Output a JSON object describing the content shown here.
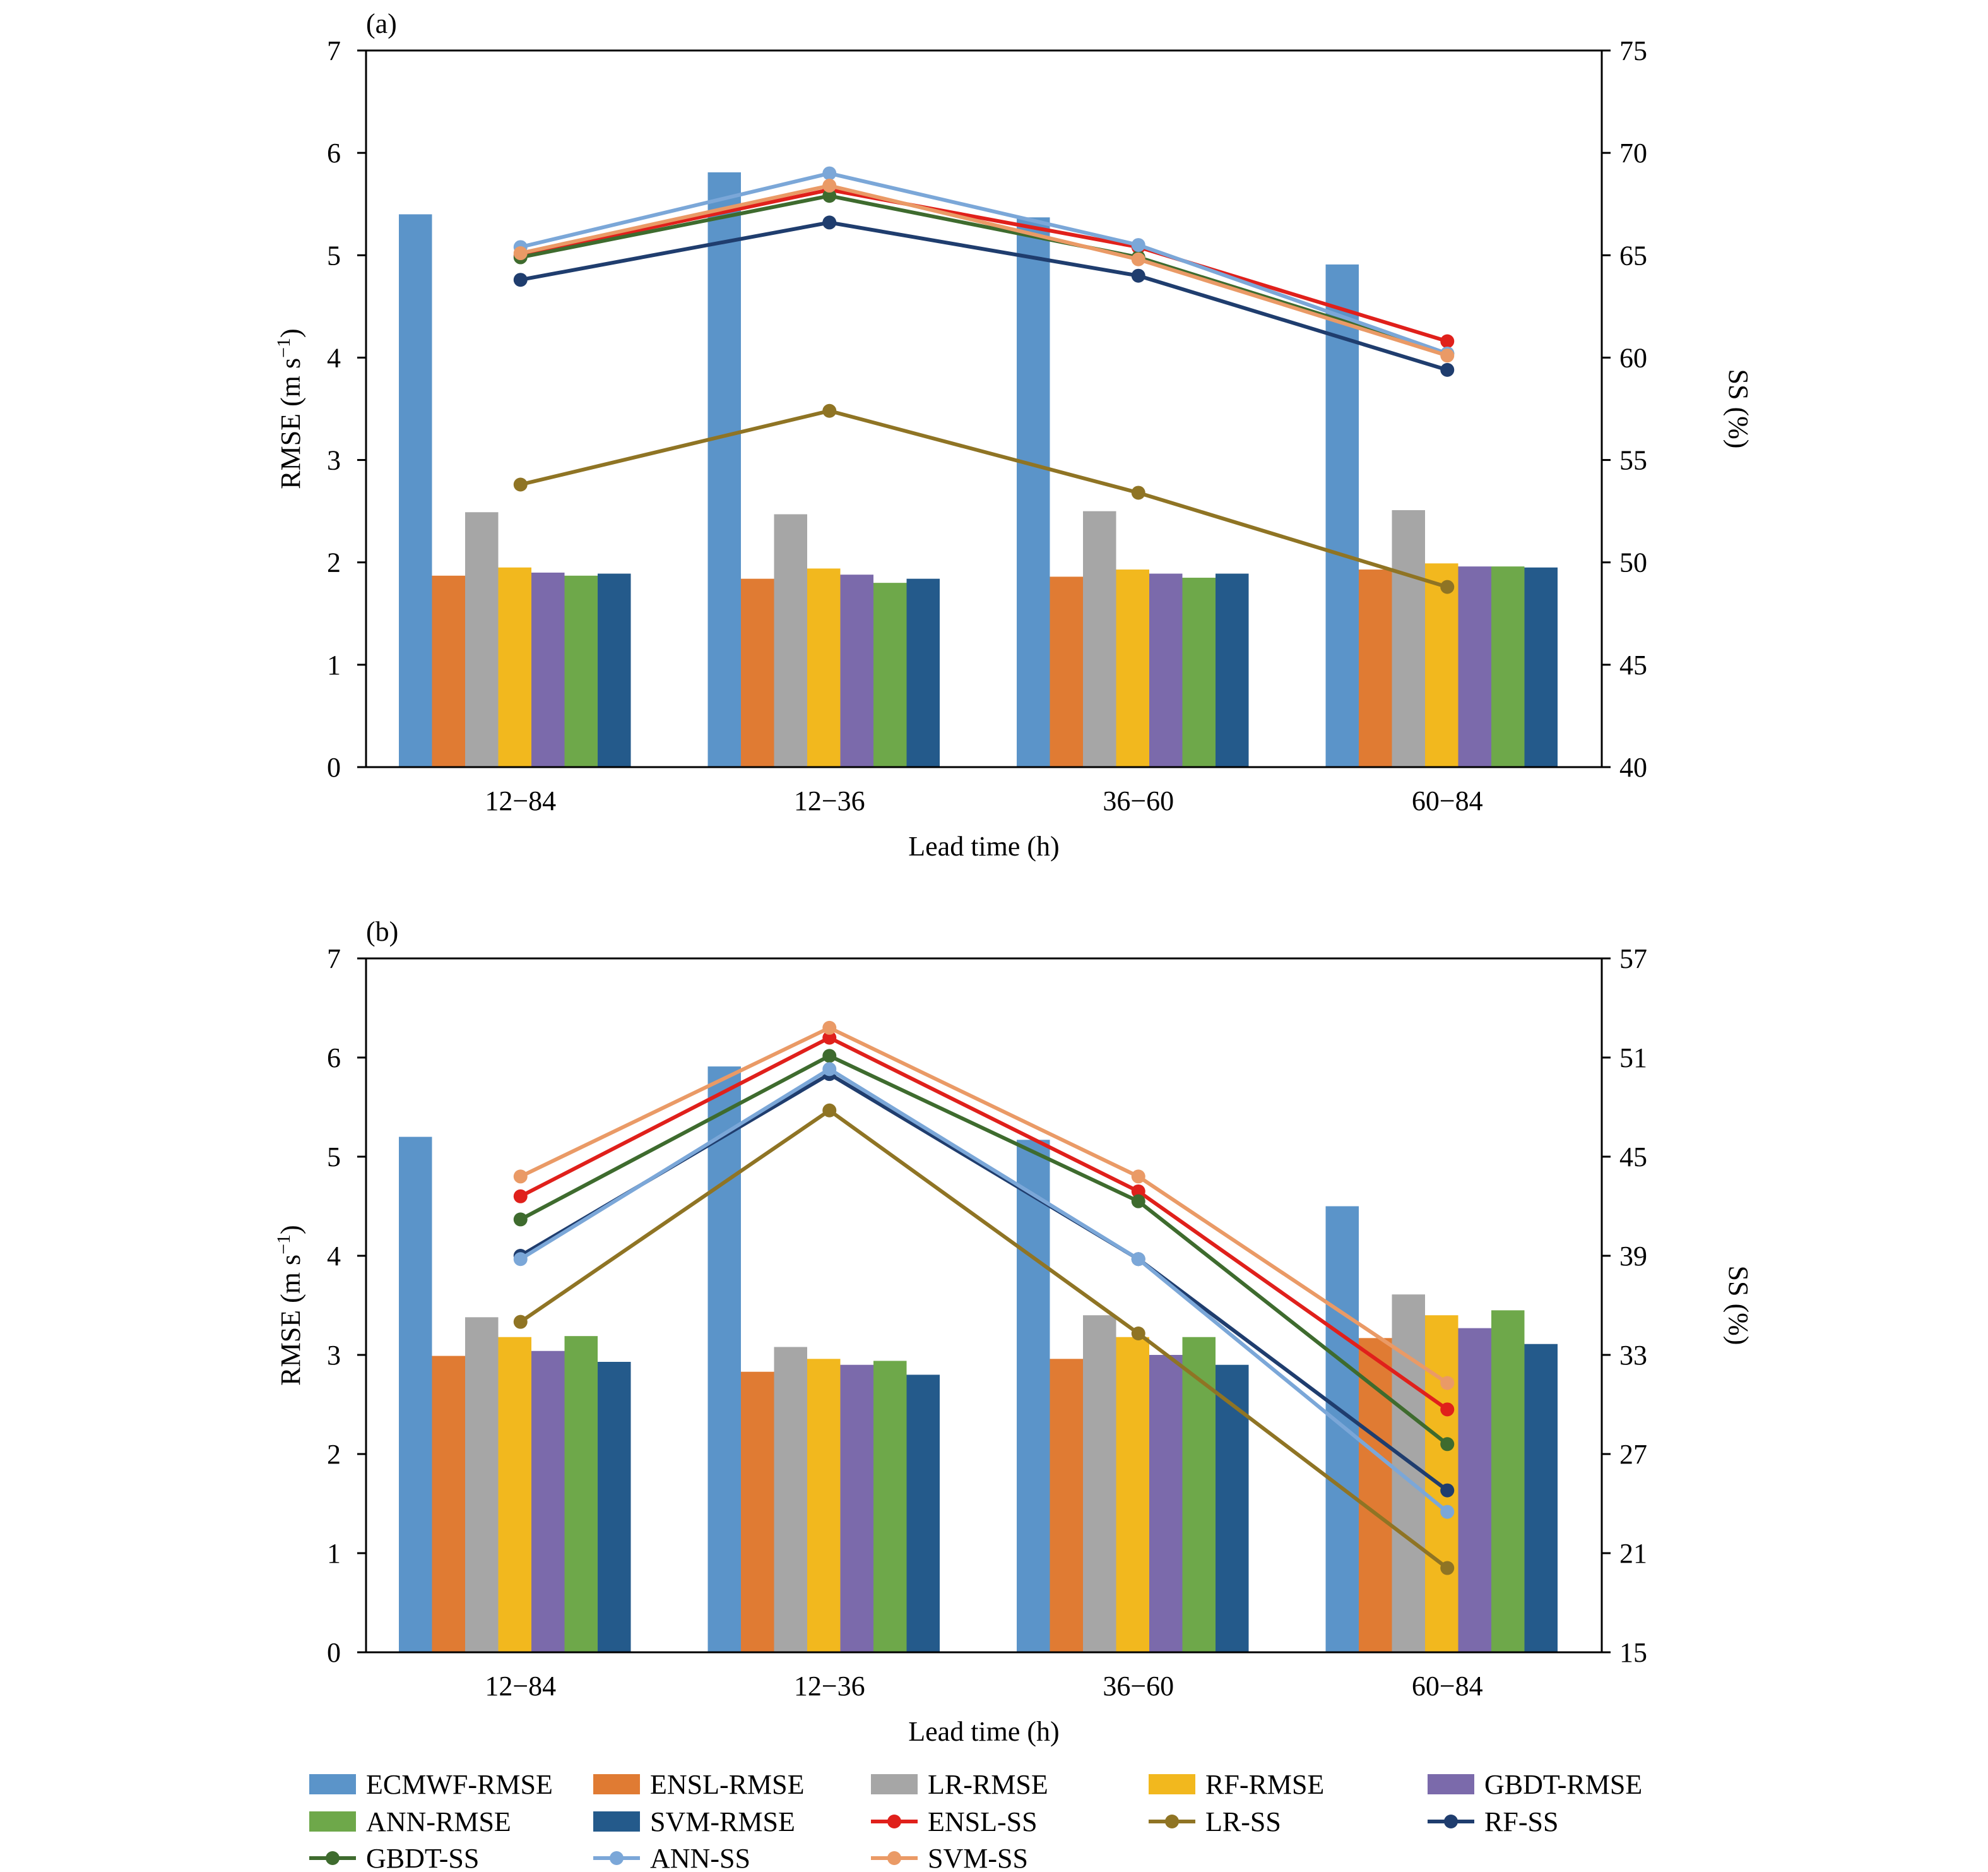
{
  "legend": {
    "items": [
      {
        "label": "ECMWF-RMSE",
        "kind": "bar",
        "color": "#5b94c9"
      },
      {
        "label": "ENSL-RMSE",
        "kind": "bar",
        "color": "#e07b33"
      },
      {
        "label": "LR-RMSE",
        "kind": "bar",
        "color": "#a6a6a6"
      },
      {
        "label": "RF-RMSE",
        "kind": "bar",
        "color": "#f2b81e"
      },
      {
        "label": "GBDT-RMSE",
        "kind": "bar",
        "color": "#7b6aab"
      },
      {
        "label": "ANN-RMSE",
        "kind": "bar",
        "color": "#6ea84a"
      },
      {
        "label": "SVM-RMSE",
        "kind": "bar",
        "color": "#245a8b"
      },
      {
        "label": "ENSL-SS",
        "kind": "line",
        "color": "#e0201b"
      },
      {
        "label": "LR-SS",
        "kind": "line",
        "color": "#8f7424"
      },
      {
        "label": "RF-SS",
        "kind": "line",
        "color": "#1f3d6e"
      },
      {
        "label": "GBDT-SS",
        "kind": "line",
        "color": "#3e6b2e"
      },
      {
        "label": "ANN-SS",
        "kind": "line",
        "color": "#7ba7d8"
      },
      {
        "label": "SVM-SS",
        "kind": "line",
        "color": "#ea9a66"
      }
    ]
  },
  "chart_data": [
    {
      "panel_label": "(a)",
      "type": "bar",
      "xlabel": "Lead time (h)",
      "ylabel": "RMSE (m s",
      "ylabel_sup": "−1",
      "ylabel_close": ")",
      "y2label": "SS (%)",
      "ylim": [
        0,
        7
      ],
      "y2lim": [
        40,
        75
      ],
      "yticks": [
        "0",
        "1",
        "2",
        "3",
        "4",
        "5",
        "6",
        "7"
      ],
      "y2ticks": [
        "40",
        "45",
        "50",
        "55",
        "60",
        "65",
        "70",
        "75"
      ],
      "categories": [
        "12−84",
        "12−36",
        "36−60",
        "60−84"
      ],
      "bar_series": [
        {
          "name": "ECMWF-RMSE",
          "color": "#5b94c9",
          "values": [
            5.4,
            5.81,
            5.37,
            4.91
          ]
        },
        {
          "name": "ENSL-RMSE",
          "color": "#e07b33",
          "values": [
            1.87,
            1.84,
            1.86,
            1.93
          ]
        },
        {
          "name": "LR-RMSE",
          "color": "#a6a6a6",
          "values": [
            2.49,
            2.47,
            2.5,
            2.51
          ]
        },
        {
          "name": "RF-RMSE",
          "color": "#f2b81e",
          "values": [
            1.95,
            1.94,
            1.93,
            1.99
          ]
        },
        {
          "name": "GBDT-RMSE",
          "color": "#7b6aab",
          "values": [
            1.9,
            1.88,
            1.89,
            1.96
          ]
        },
        {
          "name": "ANN-RMSE",
          "color": "#6ea84a",
          "values": [
            1.87,
            1.8,
            1.85,
            1.96
          ]
        },
        {
          "name": "SVM-RMSE",
          "color": "#245a8b",
          "values": [
            1.89,
            1.84,
            1.89,
            1.95
          ]
        }
      ],
      "line_series": [
        {
          "name": "ENSL-SS",
          "color": "#e0201b",
          "values": [
            65.0,
            68.2,
            65.4,
            60.8
          ]
        },
        {
          "name": "LR-SS",
          "color": "#8f7424",
          "values": [
            53.8,
            57.4,
            53.4,
            48.8
          ]
        },
        {
          "name": "RF-SS",
          "color": "#1f3d6e",
          "values": [
            63.8,
            66.6,
            64.0,
            59.4
          ]
        },
        {
          "name": "GBDT-SS",
          "color": "#3e6b2e",
          "values": [
            64.9,
            67.9,
            64.9,
            60.2
          ]
        },
        {
          "name": "ANN-SS",
          "color": "#7ba7d8",
          "values": [
            65.4,
            69.0,
            65.5,
            60.2
          ]
        },
        {
          "name": "SVM-SS",
          "color": "#ea9a66",
          "values": [
            65.1,
            68.4,
            64.8,
            60.1
          ]
        }
      ]
    },
    {
      "panel_label": "(b)",
      "type": "bar",
      "xlabel": "Lead time (h)",
      "ylabel": "RMSE (m s",
      "ylabel_sup": "−1",
      "ylabel_close": ")",
      "y2label": "SS (%)",
      "ylim": [
        0,
        7
      ],
      "y2lim": [
        15,
        57
      ],
      "yticks": [
        "0",
        "1",
        "2",
        "3",
        "4",
        "5",
        "6",
        "7"
      ],
      "y2ticks": [
        "15",
        "21",
        "27",
        "33",
        "39",
        "45",
        "51",
        "57"
      ],
      "categories": [
        "12−84",
        "12−36",
        "36−60",
        "60−84"
      ],
      "bar_series": [
        {
          "name": "ECMWF-RMSE",
          "color": "#5b94c9",
          "values": [
            5.2,
            5.91,
            5.17,
            4.5
          ]
        },
        {
          "name": "ENSL-RMSE",
          "color": "#e07b33",
          "values": [
            2.99,
            2.83,
            2.96,
            3.17
          ]
        },
        {
          "name": "LR-RMSE",
          "color": "#a6a6a6",
          "values": [
            3.38,
            3.08,
            3.4,
            3.61
          ]
        },
        {
          "name": "RF-RMSE",
          "color": "#f2b81e",
          "values": [
            3.18,
            2.96,
            3.18,
            3.4
          ]
        },
        {
          "name": "GBDT-RMSE",
          "color": "#7b6aab",
          "values": [
            3.04,
            2.9,
            3.0,
            3.27
          ]
        },
        {
          "name": "ANN-RMSE",
          "color": "#6ea84a",
          "values": [
            3.19,
            2.94,
            3.18,
            3.45
          ]
        },
        {
          "name": "SVM-RMSE",
          "color": "#245a8b",
          "values": [
            2.93,
            2.8,
            2.9,
            3.11
          ]
        }
      ],
      "line_series": [
        {
          "name": "ENSL-SS",
          "color": "#e0201b",
          "values": [
            42.6,
            52.2,
            42.9,
            29.7
          ]
        },
        {
          "name": "LR-SS",
          "color": "#8f7424",
          "values": [
            35.0,
            47.8,
            34.3,
            20.1
          ]
        },
        {
          "name": "RF-SS",
          "color": "#1f3d6e",
          "values": [
            39.0,
            50.0,
            38.8,
            24.8
          ]
        },
        {
          "name": "GBDT-SS",
          "color": "#3e6b2e",
          "values": [
            41.2,
            51.1,
            42.3,
            27.6
          ]
        },
        {
          "name": "ANN-SS",
          "color": "#7ba7d8",
          "values": [
            38.8,
            50.3,
            38.8,
            23.5
          ]
        },
        {
          "name": "SVM-SS",
          "color": "#ea9a66",
          "values": [
            43.8,
            52.8,
            43.8,
            31.3
          ]
        }
      ]
    }
  ]
}
